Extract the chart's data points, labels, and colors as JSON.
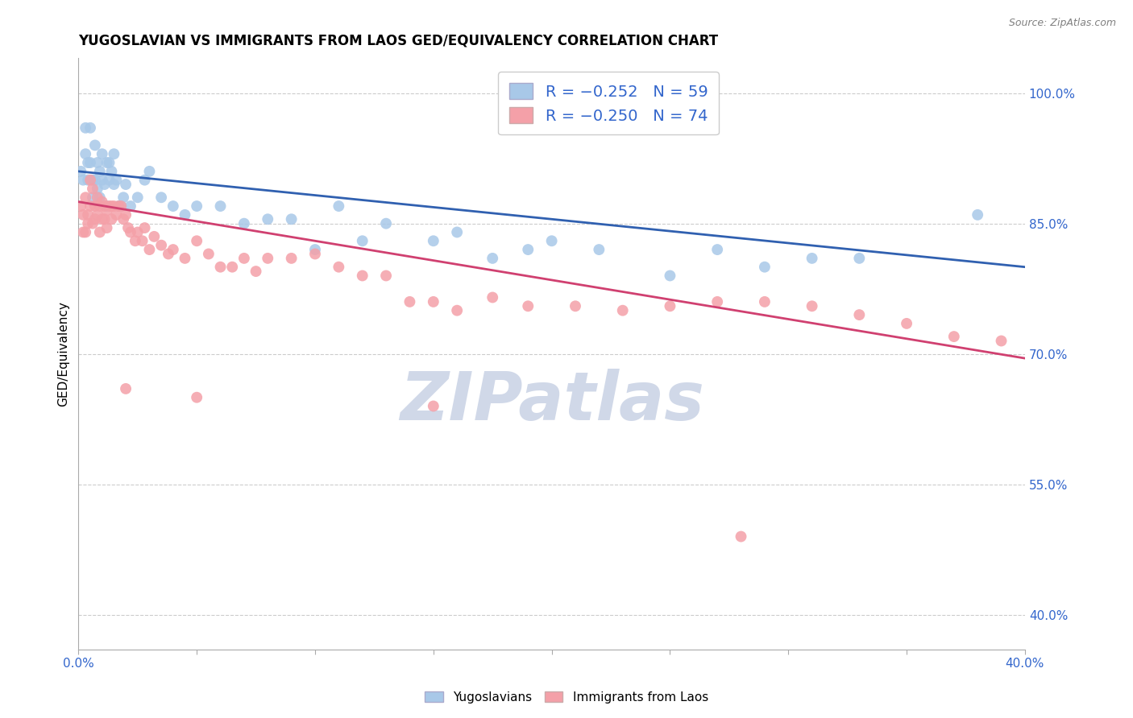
{
  "title": "YUGOSLAVIAN VS IMMIGRANTS FROM LAOS GED/EQUIVALENCY CORRELATION CHART",
  "source": "Source: ZipAtlas.com",
  "ylabel": "GED/Equivalency",
  "ytick_values": [
    1.0,
    0.85,
    0.7,
    0.55,
    0.4
  ],
  "xmin": 0.0,
  "xmax": 0.4,
  "ymin": 0.36,
  "ymax": 1.04,
  "blue_color": "#a8c8e8",
  "pink_color": "#f4a0a8",
  "blue_line_color": "#3060b0",
  "pink_line_color": "#d04070",
  "watermark_color": "#d0d8e8",
  "background_color": "#ffffff",
  "blue_scatter_x": [
    0.001,
    0.002,
    0.003,
    0.003,
    0.004,
    0.004,
    0.005,
    0.005,
    0.006,
    0.006,
    0.007,
    0.007,
    0.008,
    0.008,
    0.009,
    0.009,
    0.01,
    0.01,
    0.011,
    0.012,
    0.012,
    0.013,
    0.013,
    0.014,
    0.015,
    0.015,
    0.016,
    0.017,
    0.018,
    0.019,
    0.02,
    0.022,
    0.025,
    0.028,
    0.03,
    0.035,
    0.04,
    0.045,
    0.05,
    0.06,
    0.07,
    0.08,
    0.09,
    0.1,
    0.11,
    0.12,
    0.13,
    0.15,
    0.16,
    0.175,
    0.19,
    0.2,
    0.22,
    0.25,
    0.27,
    0.29,
    0.31,
    0.33,
    0.38
  ],
  "blue_scatter_y": [
    0.91,
    0.9,
    0.96,
    0.93,
    0.92,
    0.9,
    0.96,
    0.92,
    0.9,
    0.88,
    0.94,
    0.9,
    0.92,
    0.89,
    0.91,
    0.88,
    0.93,
    0.9,
    0.895,
    0.92,
    0.87,
    0.9,
    0.92,
    0.91,
    0.93,
    0.895,
    0.9,
    0.87,
    0.87,
    0.88,
    0.895,
    0.87,
    0.88,
    0.9,
    0.91,
    0.88,
    0.87,
    0.86,
    0.87,
    0.87,
    0.85,
    0.855,
    0.855,
    0.82,
    0.87,
    0.83,
    0.85,
    0.83,
    0.84,
    0.81,
    0.82,
    0.83,
    0.82,
    0.79,
    0.82,
    0.8,
    0.81,
    0.81,
    0.86
  ],
  "pink_scatter_x": [
    0.001,
    0.002,
    0.002,
    0.003,
    0.003,
    0.004,
    0.004,
    0.005,
    0.005,
    0.006,
    0.006,
    0.007,
    0.007,
    0.008,
    0.008,
    0.009,
    0.009,
    0.01,
    0.01,
    0.011,
    0.011,
    0.012,
    0.012,
    0.013,
    0.014,
    0.014,
    0.015,
    0.016,
    0.017,
    0.018,
    0.019,
    0.02,
    0.021,
    0.022,
    0.024,
    0.025,
    0.027,
    0.028,
    0.03,
    0.032,
    0.035,
    0.038,
    0.04,
    0.045,
    0.05,
    0.055,
    0.06,
    0.065,
    0.07,
    0.075,
    0.08,
    0.09,
    0.1,
    0.11,
    0.12,
    0.13,
    0.14,
    0.15,
    0.16,
    0.175,
    0.19,
    0.21,
    0.23,
    0.25,
    0.27,
    0.29,
    0.31,
    0.33,
    0.35,
    0.37,
    0.39,
    0.15,
    0.28,
    0.05,
    0.02
  ],
  "pink_scatter_y": [
    0.87,
    0.86,
    0.84,
    0.88,
    0.84,
    0.86,
    0.85,
    0.9,
    0.87,
    0.89,
    0.85,
    0.87,
    0.855,
    0.88,
    0.86,
    0.87,
    0.84,
    0.875,
    0.855,
    0.87,
    0.855,
    0.865,
    0.845,
    0.87,
    0.87,
    0.855,
    0.87,
    0.86,
    0.87,
    0.87,
    0.855,
    0.86,
    0.845,
    0.84,
    0.83,
    0.84,
    0.83,
    0.845,
    0.82,
    0.835,
    0.825,
    0.815,
    0.82,
    0.81,
    0.83,
    0.815,
    0.8,
    0.8,
    0.81,
    0.795,
    0.81,
    0.81,
    0.815,
    0.8,
    0.79,
    0.79,
    0.76,
    0.76,
    0.75,
    0.765,
    0.755,
    0.755,
    0.75,
    0.755,
    0.76,
    0.76,
    0.755,
    0.745,
    0.735,
    0.72,
    0.715,
    0.64,
    0.49,
    0.65,
    0.66
  ],
  "blue_trendline_x": [
    0.0,
    0.4
  ],
  "blue_trendline_y": [
    0.91,
    0.8
  ],
  "pink_trendline_x": [
    0.0,
    0.4
  ],
  "pink_trendline_y": [
    0.875,
    0.695
  ]
}
